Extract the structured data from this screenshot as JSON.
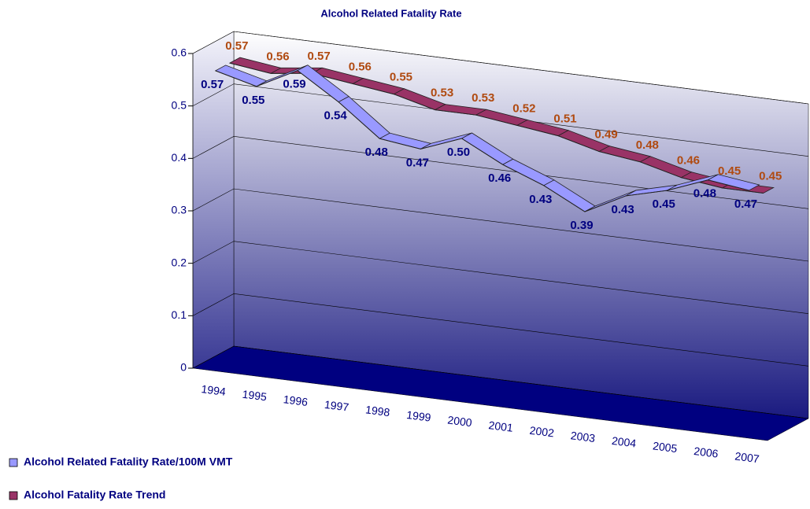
{
  "chart_data": {
    "type": "line3d",
    "title": "Alcohol Related Fatality Rate",
    "categories": [
      "1994",
      "1995",
      "1996",
      "1997",
      "1998",
      "1999",
      "2000",
      "2001",
      "2002",
      "2003",
      "2004",
      "2005",
      "2006",
      "2007"
    ],
    "series": [
      {
        "name": "Alcohol Related Fatality Rate/100M VMT",
        "color": "#9999ff",
        "label_color": "#000080",
        "values": [
          0.57,
          0.55,
          0.59,
          0.54,
          0.48,
          0.47,
          0.5,
          0.46,
          0.43,
          0.39,
          0.43,
          0.45,
          0.48,
          0.47
        ],
        "value_labels": [
          "0.57",
          "0.55",
          "0.59",
          "0.54",
          "0.48",
          "0.47",
          "0.50",
          "0.46",
          "0.43",
          "0.39",
          "0.43",
          "0.45",
          "0.48",
          "0.47"
        ]
      },
      {
        "name": "Alcohol Fatality Rate Trend",
        "color": "#993366",
        "label_color": "#b04a10",
        "values": [
          0.57,
          0.56,
          0.57,
          0.56,
          0.55,
          0.53,
          0.53,
          0.52,
          0.51,
          0.49,
          0.48,
          0.46,
          0.45,
          0.45
        ],
        "value_labels": [
          "0.57",
          "0.56",
          "0.57",
          "0.56",
          "0.55",
          "0.53",
          "0.53",
          "0.52",
          "0.51",
          "0.49",
          "0.48",
          "0.46",
          "0.45",
          "0.45"
        ]
      }
    ],
    "ylim": [
      0,
      0.6
    ],
    "yticks": [
      0,
      0.1,
      0.2,
      0.3,
      0.4,
      0.5,
      0.6
    ],
    "grid": true,
    "legend": "bottom-left"
  }
}
